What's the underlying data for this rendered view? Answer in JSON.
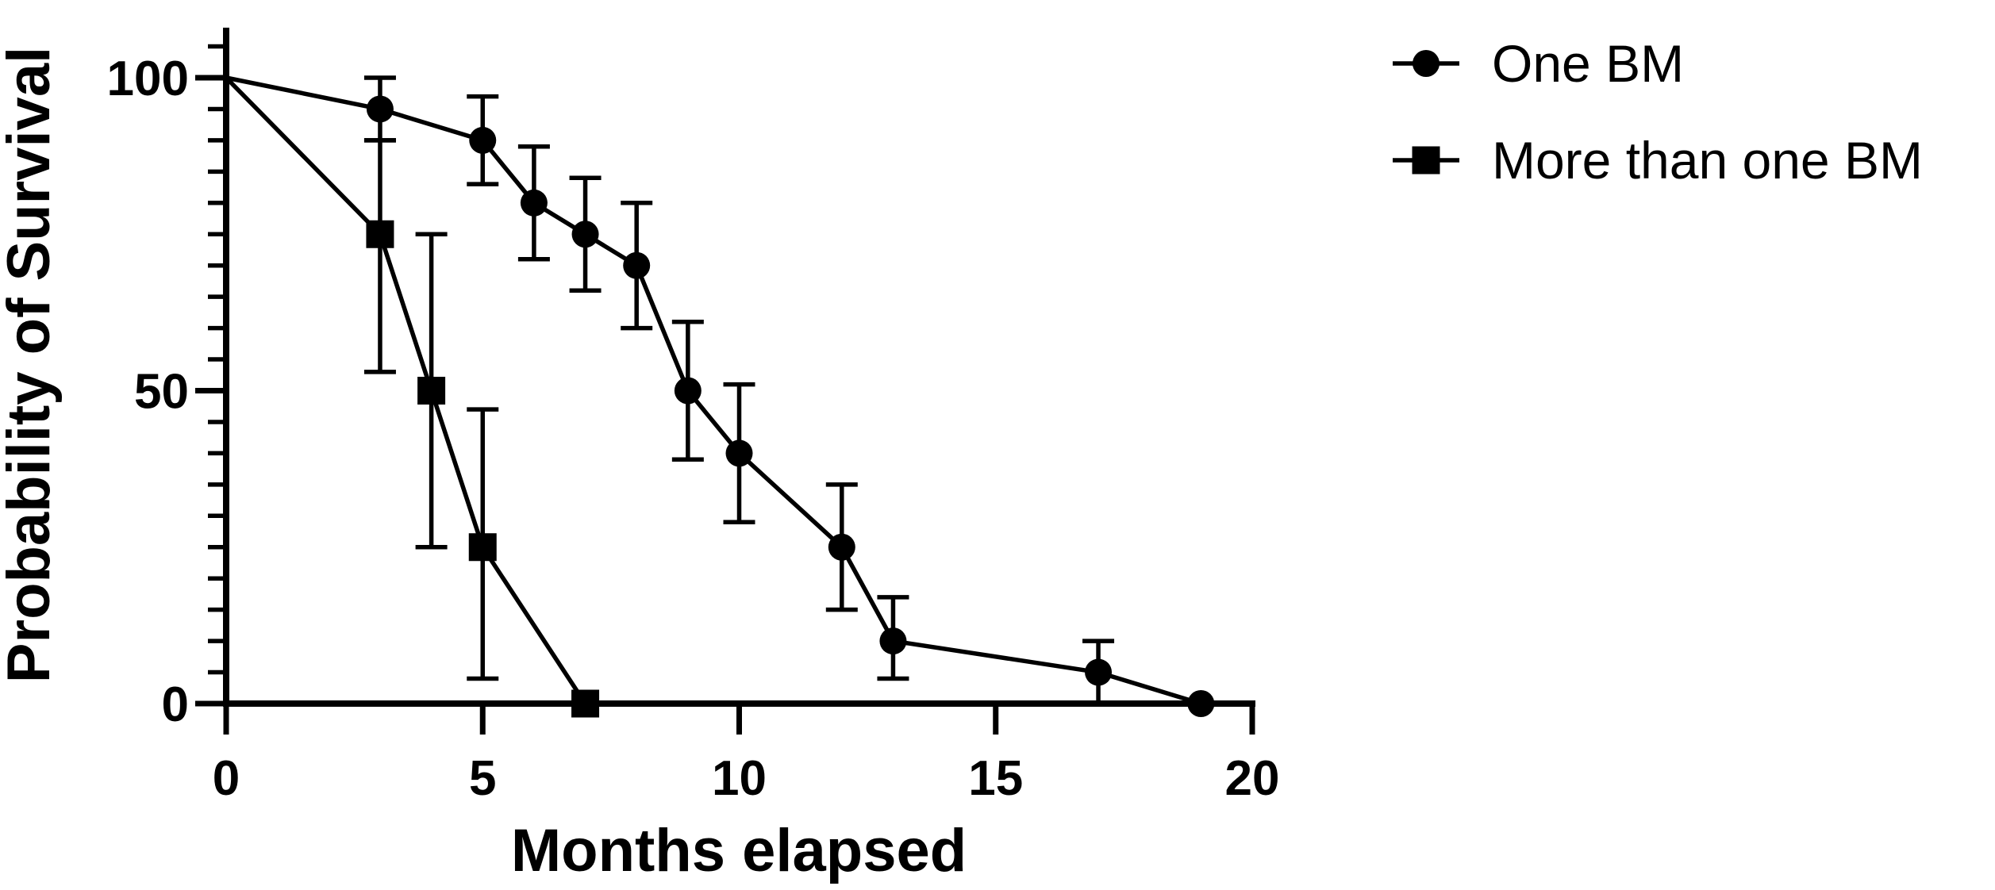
{
  "figure": {
    "background_color": "#ffffff",
    "ink_color": "#000000"
  },
  "chart_data": {
    "type": "line",
    "title": "",
    "xlabel": "Months elapsed",
    "ylabel": "Probability of Survival",
    "xlim": [
      0,
      20
    ],
    "ylim": [
      0,
      100
    ],
    "x_ticks": [
      0,
      5,
      10,
      15,
      20
    ],
    "x_tick_labels": [
      "0",
      "5",
      "10",
      "15",
      "20"
    ],
    "y_ticks": [
      0,
      50,
      100
    ],
    "y_tick_labels": [
      "0",
      "50",
      "100"
    ],
    "y_minor_tick_step": 5,
    "y_axis_extends_to": 108,
    "grid": false,
    "error_bars": "vertical-with-caps",
    "legend_position": "top-right-outside",
    "series": [
      {
        "name": "One BM",
        "marker": "circle",
        "color": "#000000",
        "points": [
          {
            "x": 0,
            "y": 100
          },
          {
            "x": 3,
            "y": 95,
            "err": [
              90,
              100
            ]
          },
          {
            "x": 5,
            "y": 90,
            "err": [
              83,
              97
            ]
          },
          {
            "x": 6,
            "y": 80,
            "err": [
              71,
              89
            ]
          },
          {
            "x": 7,
            "y": 75,
            "err": [
              66,
              84
            ]
          },
          {
            "x": 8,
            "y": 70,
            "err": [
              60,
              80
            ]
          },
          {
            "x": 9,
            "y": 50,
            "err": [
              39,
              61
            ]
          },
          {
            "x": 10,
            "y": 40,
            "err": [
              29,
              51
            ]
          },
          {
            "x": 12,
            "y": 25,
            "err": [
              15,
              35
            ]
          },
          {
            "x": 13,
            "y": 10,
            "err": [
              4,
              17
            ]
          },
          {
            "x": 17,
            "y": 5,
            "err": [
              0,
              10
            ]
          },
          {
            "x": 19,
            "y": 0
          }
        ]
      },
      {
        "name": "More than one BM",
        "marker": "square",
        "color": "#000000",
        "points": [
          {
            "x": 0,
            "y": 100
          },
          {
            "x": 3,
            "y": 75,
            "err": [
              53,
              90
            ]
          },
          {
            "x": 4,
            "y": 50,
            "err": [
              25,
              75
            ]
          },
          {
            "x": 5,
            "y": 25,
            "err": [
              4,
              47
            ]
          },
          {
            "x": 7,
            "y": 0
          }
        ]
      }
    ]
  }
}
